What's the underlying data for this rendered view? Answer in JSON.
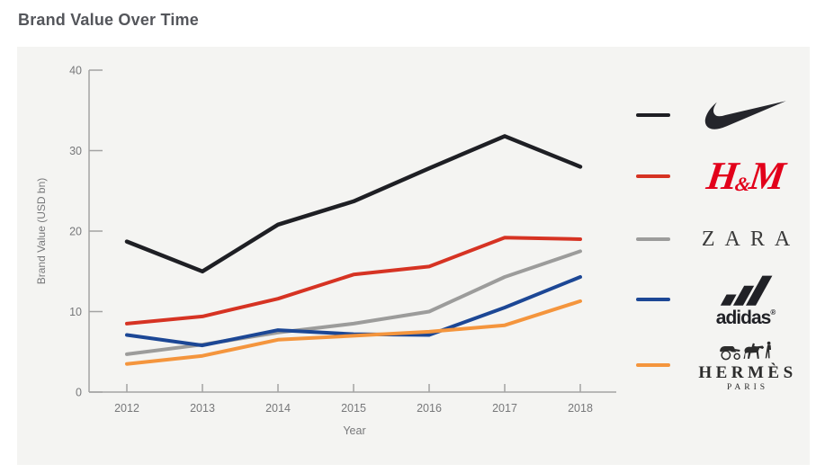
{
  "title": "Brand Value Over Time",
  "chart_data": {
    "type": "line",
    "title": "Brand Value Over Time",
    "xlabel": "Year",
    "ylabel": "Brand Value (USD bn)",
    "x": [
      2012,
      2013,
      2014,
      2015,
      2016,
      2017,
      2018
    ],
    "ylim": [
      0,
      40
    ],
    "yticks": [
      0,
      10,
      20,
      30,
      40
    ],
    "grid": false,
    "legend_position": "right",
    "series": [
      {
        "name": "Nike",
        "color": "#1e1f24",
        "values": [
          18.7,
          15.0,
          20.8,
          23.7,
          27.8,
          31.8,
          28.0
        ]
      },
      {
        "name": "H&M",
        "color": "#d63323",
        "values": [
          8.5,
          9.4,
          11.6,
          14.6,
          15.6,
          19.2,
          19.0
        ]
      },
      {
        "name": "Zara",
        "color": "#9c9c9b",
        "values": [
          4.7,
          5.9,
          7.4,
          8.5,
          10.0,
          14.3,
          17.5
        ]
      },
      {
        "name": "adidas",
        "color": "#1c4795",
        "values": [
          7.1,
          5.8,
          7.7,
          7.2,
          7.1,
          10.5,
          14.3
        ]
      },
      {
        "name": "Hermès",
        "color": "#f4953d",
        "values": [
          3.5,
          4.5,
          6.5,
          7.0,
          7.5,
          8.3,
          11.3
        ]
      }
    ]
  },
  "legend": {
    "items": [
      {
        "name": "Nike",
        "logo_type": "nike",
        "logo_color": "#24252b"
      },
      {
        "name": "H&M",
        "logo_type": "hm",
        "logo_color": "#e2001a",
        "logo_parts": [
          "H",
          "&",
          "M"
        ]
      },
      {
        "name": "Zara",
        "logo_type": "zara",
        "logo_color": "#3b3b3b",
        "logo_text": "ZARA"
      },
      {
        "name": "adidas",
        "logo_type": "adidas",
        "logo_color": "#202126",
        "logo_text": "adidas",
        "logo_reg": "®"
      },
      {
        "name": "Hermès",
        "logo_type": "hermes",
        "logo_color": "#2c2c2c",
        "logo_text": "HERMÈS",
        "logo_sub": "PARIS"
      }
    ]
  }
}
